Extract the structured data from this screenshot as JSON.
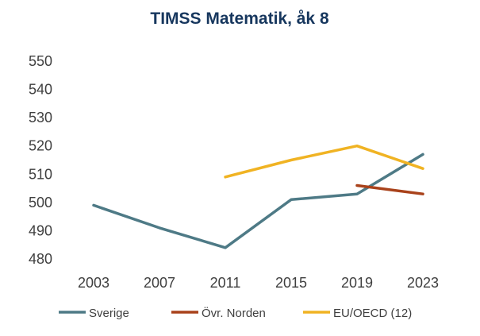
{
  "chart_data": {
    "type": "line",
    "title": "TIMSS Matematik, åk 8",
    "xlabel": "",
    "ylabel": "",
    "x": [
      2003,
      2007,
      2011,
      2015,
      2019,
      2023
    ],
    "ylim": [
      480,
      550
    ],
    "yticks": [
      480,
      490,
      500,
      510,
      520,
      530,
      540,
      550
    ],
    "grid": false,
    "legend_position": "bottom",
    "series": [
      {
        "name": "Sverige",
        "color": "#4e7a86",
        "points": [
          [
            2003,
            499
          ],
          [
            2007,
            491
          ],
          [
            2011,
            484
          ],
          [
            2015,
            501
          ],
          [
            2019,
            503
          ],
          [
            2023,
            517
          ]
        ]
      },
      {
        "name": "Övr. Norden",
        "color": "#a9421b",
        "points": [
          [
            2019,
            506
          ],
          [
            2023,
            503
          ]
        ]
      },
      {
        "name": "EU/OECD (12)",
        "color": "#f0b323",
        "points": [
          [
            2011,
            509
          ],
          [
            2015,
            515
          ],
          [
            2019,
            520
          ],
          [
            2023,
            512
          ]
        ]
      }
    ]
  }
}
